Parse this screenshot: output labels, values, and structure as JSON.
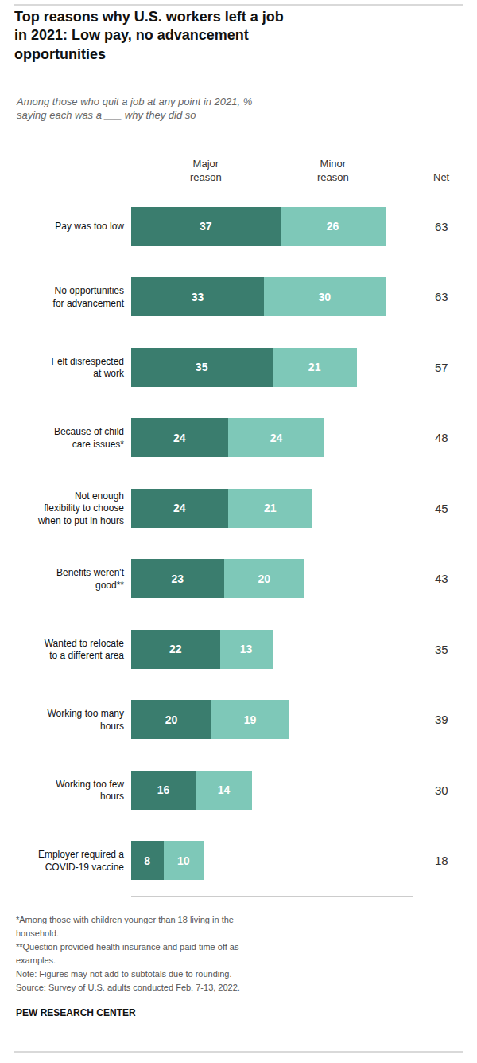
{
  "chart_data": {
    "type": "bar",
    "orientation": "horizontal",
    "stacked": true,
    "data_labels": true,
    "tick_labels": "y",
    "grid": false,
    "title": "Top reasons why U.S. workers left a job\nin 2021: Low pay, no advancement\nopportunities",
    "subtitle": "Among those who quit a job at any point in 2021, %\nsaying each was a ___ why they did so",
    "categories": [
      "Pay was too low",
      "No opportunities\nfor advancement",
      "Felt disrespected\nat work",
      "Because of child\ncare issues*",
      "Not enough\nflexibility to choose\nwhen to put in hours",
      "Benefits weren't\ngood**",
      "Wanted to relocate\nto a different area",
      "Working too many\nhours",
      "Working too few\nhours",
      "Employer required a\nCOVID-19 vaccine"
    ],
    "series": [
      {
        "name": "Major\nreason",
        "color": "#3a7d6e",
        "values": [
          37,
          33,
          35,
          24,
          24,
          23,
          22,
          20,
          16,
          8
        ]
      },
      {
        "name": "Minor\nreason",
        "color": "#7ec8b8",
        "values": [
          26,
          30,
          21,
          24,
          21,
          20,
          13,
          19,
          14,
          10
        ]
      }
    ],
    "net": {
      "name": "Net",
      "values": [
        63,
        63,
        57,
        48,
        45,
        43,
        35,
        39,
        30,
        18
      ]
    },
    "xlim": [
      0,
      70
    ],
    "notes": [
      "*Among those with children younger than 18 living in the",
      "household.",
      "**Question provided health insurance and paid time off as",
      "examples.",
      "Note: Figures may not add to subtotals due to rounding.",
      "Source: Survey of U.S. adults conducted Feb. 7-13, 2022."
    ],
    "source": "PEW RESEARCH CENTER"
  }
}
